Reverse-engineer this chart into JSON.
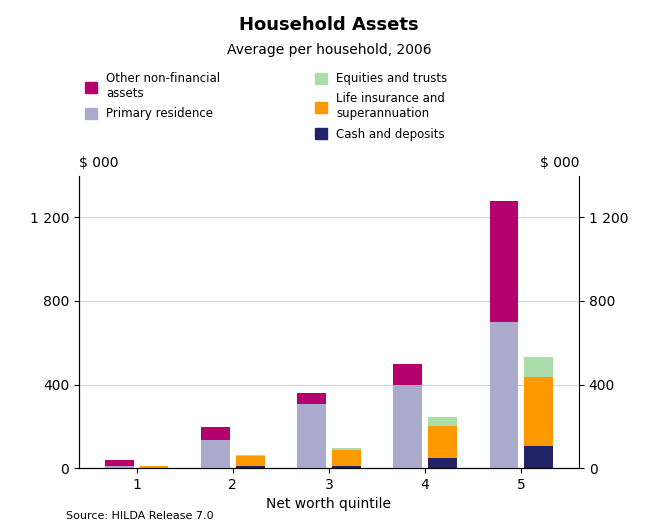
{
  "title": "Household Assets",
  "subtitle": "Average per household, 2006",
  "xlabel": "Net worth quintile",
  "ylabel_left": "$ 000",
  "ylabel_right": "$ 000",
  "source": "Source: HILDA Release 7.0",
  "quintiles": [
    1,
    2,
    3,
    4,
    5
  ],
  "bar_width": 0.3,
  "ylim": [
    0,
    1400
  ],
  "yticks": [
    0,
    400,
    800,
    1200
  ],
  "yticklabels": [
    "0",
    "400",
    "800",
    "1 200"
  ],
  "primary_residence": [
    10,
    135,
    305,
    400,
    700
  ],
  "other_nonfinancial": [
    28,
    60,
    55,
    100,
    580
  ],
  "cash_deposits": [
    2,
    8,
    12,
    50,
    105
  ],
  "life_insurance_super": [
    8,
    52,
    75,
    150,
    330
  ],
  "equities_trusts": [
    2,
    5,
    10,
    45,
    95
  ],
  "colors": {
    "other_nonfinancial": "#B5006E",
    "primary_residence": "#AAAACC",
    "equities_trusts": "#AADDAA",
    "life_insurance_super": "#FF9900",
    "cash_deposits": "#222266"
  },
  "legend": {
    "other_nonfinancial": "Other non-financial\nassets",
    "primary_residence": "Primary residence",
    "equities_trusts": "Equities and trusts",
    "life_insurance_super": "Life insurance and\nsuperannuation",
    "cash_deposits": "Cash and deposits"
  }
}
